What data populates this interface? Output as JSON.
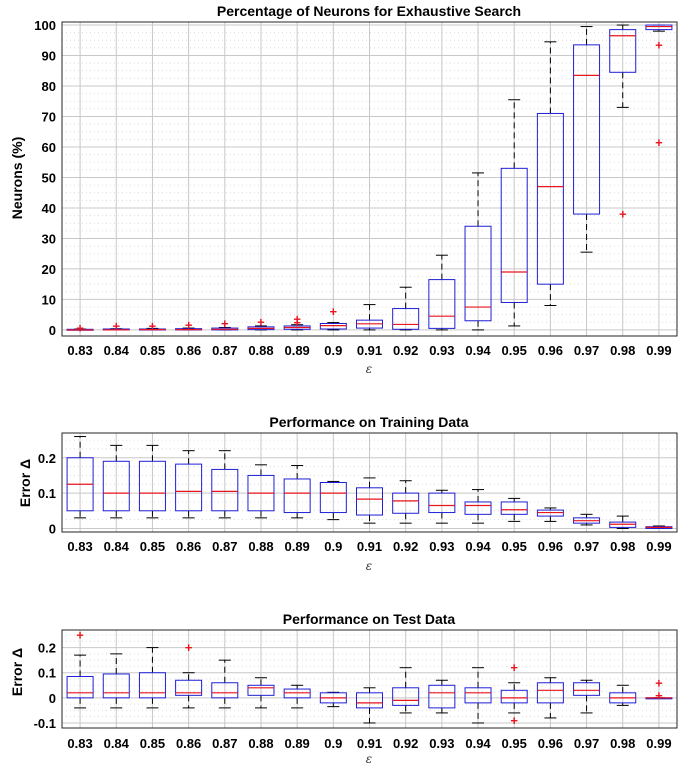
{
  "chart_data": [
    {
      "type": "box",
      "title": "Percentage of Neurons for Exhaustive Search",
      "xlabel": "ε",
      "ylabel": "Neurons (%)",
      "categories": [
        "0.83",
        "0.84",
        "0.85",
        "0.86",
        "0.87",
        "0.88",
        "0.89",
        "0.9",
        "0.91",
        "0.92",
        "0.93",
        "0.94",
        "0.95",
        "0.96",
        "0.97",
        "0.98",
        "0.99"
      ],
      "ylim": [
        -2,
        101
      ],
      "yticks": [
        0,
        10,
        20,
        30,
        40,
        50,
        60,
        70,
        80,
        90,
        100
      ],
      "minor_step": 2.5,
      "grid": true,
      "boxes": [
        {
          "min": 0,
          "q1": 0,
          "median": 0,
          "q3": 0.2,
          "max": 0.3,
          "outliers": [
            0.6
          ]
        },
        {
          "min": 0,
          "q1": 0,
          "median": 0,
          "q3": 0.3,
          "max": 0.4,
          "outliers": [
            1.2
          ]
        },
        {
          "min": 0,
          "q1": 0,
          "median": 0.1,
          "q3": 0.3,
          "max": 0.5,
          "outliers": [
            1.3
          ]
        },
        {
          "min": 0,
          "q1": 0,
          "median": 0.1,
          "q3": 0.4,
          "max": 0.6,
          "outliers": [
            1.6
          ]
        },
        {
          "min": 0,
          "q1": 0,
          "median": 0.2,
          "q3": 0.6,
          "max": 0.8,
          "outliers": [
            2.1
          ]
        },
        {
          "min": 0,
          "q1": 0.1,
          "median": 0.5,
          "q3": 1.0,
          "max": 1.3,
          "outliers": [
            2.6
          ]
        },
        {
          "min": 0,
          "q1": 0.2,
          "median": 0.8,
          "q3": 1.3,
          "max": 1.7,
          "outliers": [
            2.5,
            3.5
          ]
        },
        {
          "min": 0,
          "q1": 0.3,
          "median": 1.4,
          "q3": 2.1,
          "max": 2.4,
          "outliers": [
            6.0
          ]
        },
        {
          "min": 0,
          "q1": 0.6,
          "median": 2.0,
          "q3": 3.2,
          "max": 8.3,
          "outliers": []
        },
        {
          "min": 0,
          "q1": 0.2,
          "median": 1.8,
          "q3": 7.0,
          "max": 14.0,
          "outliers": []
        },
        {
          "min": 0,
          "q1": 0.5,
          "median": 4.5,
          "q3": 16.5,
          "max": 24.5,
          "outliers": []
        },
        {
          "min": 0,
          "q1": 3.0,
          "median": 7.5,
          "q3": 34.0,
          "max": 51.5,
          "outliers": []
        },
        {
          "min": 1.3,
          "q1": 9.0,
          "median": 19.0,
          "q3": 53.0,
          "max": 75.5,
          "outliers": []
        },
        {
          "min": 8.0,
          "q1": 15.0,
          "median": 47.0,
          "q3": 71.0,
          "max": 94.5,
          "outliers": []
        },
        {
          "min": 25.5,
          "q1": 38.0,
          "median": 83.5,
          "q3": 93.5,
          "max": 99.5,
          "outliers": []
        },
        {
          "min": 73.0,
          "q1": 84.5,
          "median": 96.5,
          "q3": 98.5,
          "max": 100,
          "outliers": [
            38.0
          ]
        },
        {
          "min": 98.0,
          "q1": 98.5,
          "median": 99.5,
          "q3": 100,
          "max": 100,
          "outliers": [
            93.5,
            61.5
          ]
        }
      ]
    },
    {
      "type": "box",
      "title": "Performance on Training Data",
      "xlabel": "ε",
      "ylabel": "Error Δ",
      "categories": [
        "0.83",
        "0.84",
        "0.85",
        "0.86",
        "0.87",
        "0.88",
        "0.89",
        "0.9",
        "0.91",
        "0.92",
        "0.93",
        "0.94",
        "0.95",
        "0.96",
        "0.97",
        "0.98",
        "0.99"
      ],
      "ylim": [
        -0.01,
        0.27
      ],
      "yticks": [
        0,
        0.1,
        0.2
      ],
      "minor_step": 0.025,
      "grid": true,
      "boxes": [
        {
          "min": 0.03,
          "q1": 0.05,
          "median": 0.125,
          "q3": 0.2,
          "max": 0.26,
          "outliers": []
        },
        {
          "min": 0.03,
          "q1": 0.05,
          "median": 0.1,
          "q3": 0.19,
          "max": 0.235,
          "outliers": []
        },
        {
          "min": 0.03,
          "q1": 0.05,
          "median": 0.1,
          "q3": 0.19,
          "max": 0.235,
          "outliers": []
        },
        {
          "min": 0.03,
          "q1": 0.05,
          "median": 0.105,
          "q3": 0.182,
          "max": 0.22,
          "outliers": []
        },
        {
          "min": 0.03,
          "q1": 0.05,
          "median": 0.105,
          "q3": 0.167,
          "max": 0.22,
          "outliers": []
        },
        {
          "min": 0.03,
          "q1": 0.05,
          "median": 0.1,
          "q3": 0.15,
          "max": 0.18,
          "outliers": []
        },
        {
          "min": 0.03,
          "q1": 0.045,
          "median": 0.1,
          "q3": 0.14,
          "max": 0.178,
          "outliers": []
        },
        {
          "min": 0.025,
          "q1": 0.045,
          "median": 0.1,
          "q3": 0.13,
          "max": 0.133,
          "outliers": []
        },
        {
          "min": 0.015,
          "q1": 0.038,
          "median": 0.083,
          "q3": 0.115,
          "max": 0.143,
          "outliers": []
        },
        {
          "min": 0.015,
          "q1": 0.043,
          "median": 0.078,
          "q3": 0.1,
          "max": 0.135,
          "outliers": []
        },
        {
          "min": 0.015,
          "q1": 0.045,
          "median": 0.065,
          "q3": 0.1,
          "max": 0.108,
          "outliers": []
        },
        {
          "min": 0.015,
          "q1": 0.04,
          "median": 0.065,
          "q3": 0.075,
          "max": 0.11,
          "outliers": []
        },
        {
          "min": 0.02,
          "q1": 0.04,
          "median": 0.053,
          "q3": 0.075,
          "max": 0.085,
          "outliers": []
        },
        {
          "min": 0.02,
          "q1": 0.035,
          "median": 0.045,
          "q3": 0.052,
          "max": 0.058,
          "outliers": []
        },
        {
          "min": 0.01,
          "q1": 0.015,
          "median": 0.022,
          "q3": 0.03,
          "max": 0.04,
          "outliers": []
        },
        {
          "min": 0.0,
          "q1": 0.003,
          "median": 0.012,
          "q3": 0.018,
          "max": 0.035,
          "outliers": []
        },
        {
          "min": 0.0,
          "q1": 0.0,
          "median": 0.003,
          "q3": 0.005,
          "max": 0.007,
          "outliers": []
        }
      ]
    },
    {
      "type": "box",
      "title": "Performance on Test Data",
      "xlabel": "ε",
      "ylabel": "Error Δ",
      "categories": [
        "0.83",
        "0.84",
        "0.85",
        "0.86",
        "0.87",
        "0.88",
        "0.89",
        "0.9",
        "0.91",
        "0.92",
        "0.93",
        "0.94",
        "0.95",
        "0.96",
        "0.97",
        "0.98",
        "0.99"
      ],
      "ylim": [
        -0.12,
        0.27
      ],
      "yticks": [
        -0.1,
        0,
        0.1,
        0.2
      ],
      "minor_step": 0.025,
      "grid": true,
      "boxes": [
        {
          "min": -0.04,
          "q1": 0.0,
          "median": 0.02,
          "q3": 0.085,
          "max": 0.17,
          "outliers": [
            0.25
          ]
        },
        {
          "min": -0.04,
          "q1": 0.0,
          "median": 0.02,
          "q3": 0.095,
          "max": 0.175,
          "outliers": []
        },
        {
          "min": -0.04,
          "q1": 0.0,
          "median": 0.02,
          "q3": 0.1,
          "max": 0.2,
          "outliers": []
        },
        {
          "min": -0.04,
          "q1": 0.01,
          "median": 0.02,
          "q3": 0.07,
          "max": 0.1,
          "outliers": [
            0.2
          ]
        },
        {
          "min": -0.04,
          "q1": 0.0,
          "median": 0.02,
          "q3": 0.06,
          "max": 0.15,
          "outliers": []
        },
        {
          "min": -0.04,
          "q1": 0.01,
          "median": 0.04,
          "q3": 0.05,
          "max": 0.08,
          "outliers": []
        },
        {
          "min": -0.04,
          "q1": 0.0,
          "median": 0.02,
          "q3": 0.035,
          "max": 0.05,
          "outliers": []
        },
        {
          "min": -0.035,
          "q1": -0.02,
          "median": 0.0,
          "q3": 0.02,
          "max": 0.022,
          "outliers": []
        },
        {
          "min": -0.1,
          "q1": -0.04,
          "median": -0.02,
          "q3": 0.02,
          "max": 0.04,
          "outliers": []
        },
        {
          "min": -0.06,
          "q1": -0.03,
          "median": -0.01,
          "q3": 0.04,
          "max": 0.12,
          "outliers": []
        },
        {
          "min": -0.06,
          "q1": -0.04,
          "median": 0.02,
          "q3": 0.05,
          "max": 0.07,
          "outliers": []
        },
        {
          "min": -0.1,
          "q1": -0.02,
          "median": 0.02,
          "q3": 0.04,
          "max": 0.12,
          "outliers": []
        },
        {
          "min": -0.06,
          "q1": -0.02,
          "median": 0.0,
          "q3": 0.03,
          "max": 0.06,
          "outliers": [
            0.12,
            -0.09
          ]
        },
        {
          "min": -0.08,
          "q1": -0.02,
          "median": 0.03,
          "q3": 0.06,
          "max": 0.08,
          "outliers": []
        },
        {
          "min": -0.06,
          "q1": 0.01,
          "median": 0.03,
          "q3": 0.06,
          "max": 0.07,
          "outliers": []
        },
        {
          "min": -0.03,
          "q1": -0.02,
          "median": 0.0,
          "q3": 0.02,
          "max": 0.05,
          "outliers": []
        },
        {
          "min": 0.0,
          "q1": 0.0,
          "median": 0.0,
          "q3": 0.0,
          "max": 0.0,
          "outliers": [
            0.06,
            0.01
          ]
        }
      ]
    }
  ]
}
